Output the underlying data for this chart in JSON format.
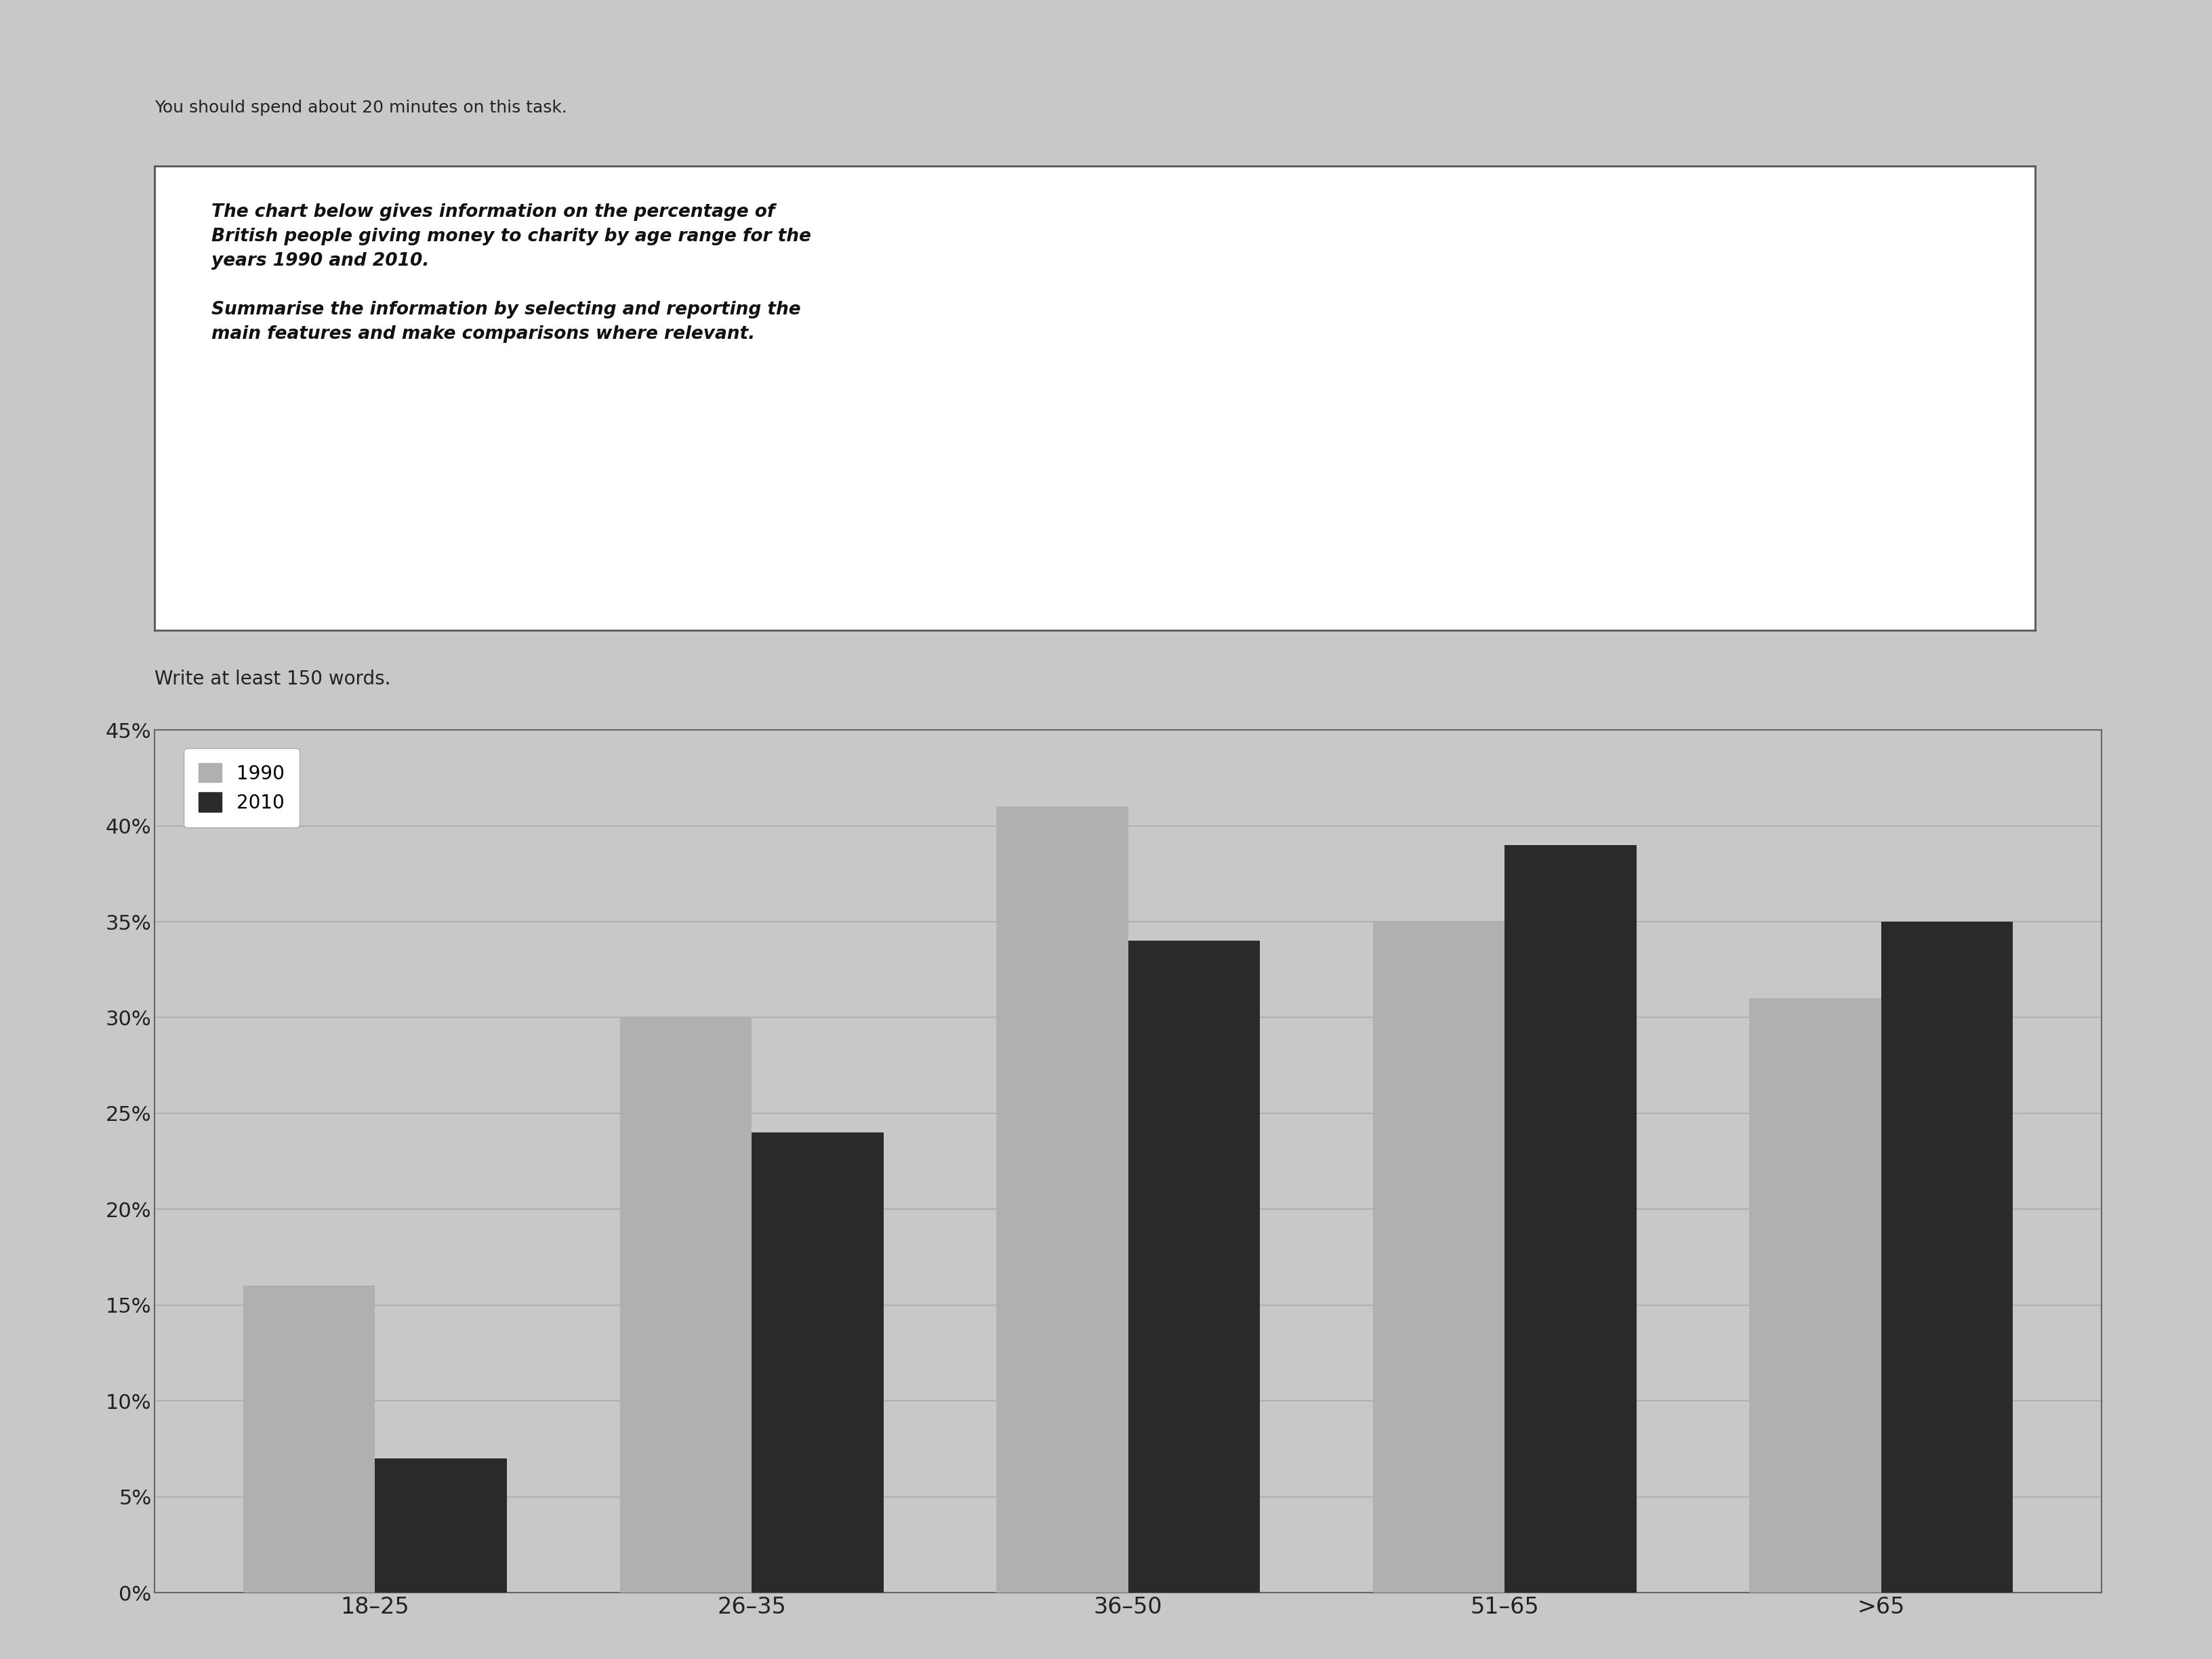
{
  "categories": [
    "18–25",
    "26–35",
    "36–50",
    "51–65",
    ">65"
  ],
  "values_1990": [
    16,
    30,
    41,
    35,
    31
  ],
  "values_2010": [
    7,
    24,
    34,
    39,
    35
  ],
  "color_1990": "#b0b0b0",
  "color_2010": "#2a2a2a",
  "legend_1990": "1990",
  "legend_2010": "2010",
  "ylim": [
    0,
    45
  ],
  "yticks": [
    0,
    5,
    10,
    15,
    20,
    25,
    30,
    35,
    40,
    45
  ],
  "yticklabels": [
    "0%",
    "5%",
    "10%",
    "15%",
    "20%",
    "25%",
    "30%",
    "35%",
    "40%",
    "45%"
  ],
  "page_bg_color": "#c8c8c8",
  "chart_bg_color": "#c8c8c8",
  "plot_area_color": "#ffffff",
  "bar_width": 0.35,
  "grid_color": "#aaaaaa",
  "instruction_box_text_line1": "The chart below gives information on the percentage of",
  "instruction_box_text_line2": "British people giving money to charity by age range for the",
  "instruction_box_text_line3": "years 1990 and 2010.",
  "instruction_box_text_line4": "Summarise the information by selecting and reporting the",
  "instruction_box_text_line5": "main features and make comparisons where relevant.",
  "write_prompt": "Write at least 150 words.",
  "top_text": "You should spend about 20 minutes on this task."
}
